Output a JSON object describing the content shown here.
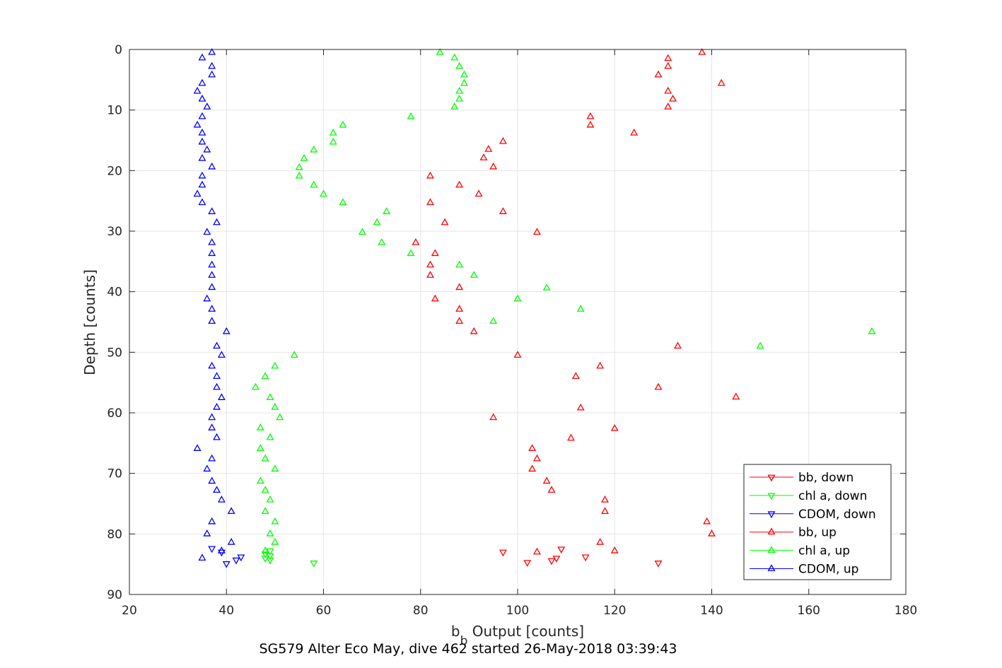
{
  "chart_data": {
    "type": "scatter",
    "xlabel_main": "b",
    "xlabel_sub": "b",
    "xlabel_rest": " Output [counts]",
    "ylabel": "Depth [counts]",
    "caption": "SG579 Alter Eco May, dive 462 started 26-May-2018 03:39:43",
    "xlim": [
      20,
      180
    ],
    "ylim": [
      0,
      90
    ],
    "y_reversed": true,
    "grid": true,
    "legend_position": "bottom-right",
    "x_ticks": [
      "20",
      "40",
      "60",
      "80",
      "100",
      "120",
      "140",
      "160",
      "180"
    ],
    "y_ticks": [
      "0",
      "10",
      "20",
      "30",
      "40",
      "50",
      "60",
      "70",
      "80",
      "90"
    ],
    "series": [
      {
        "name": "bb, down",
        "color": "#ff0000",
        "marker": "triangle-down",
        "points": [
          [
            97,
            83.0
          ],
          [
            109,
            82.5
          ],
          [
            114,
            83.8
          ],
          [
            108,
            84.0
          ],
          [
            107,
            84.4
          ],
          [
            102,
            84.7
          ],
          [
            129,
            84.8
          ]
        ]
      },
      {
        "name": "chl a, down",
        "color": "#00ff00",
        "marker": "triangle-down",
        "points": [
          [
            49,
            82.8
          ],
          [
            48,
            83.3
          ],
          [
            49,
            83.6
          ],
          [
            48,
            84.0
          ],
          [
            49,
            84.3
          ],
          [
            58,
            84.8
          ]
        ]
      },
      {
        "name": "CDOM, down",
        "color": "#0000ff",
        "marker": "triangle-down",
        "points": [
          [
            37,
            82.4
          ],
          [
            39,
            83.0
          ],
          [
            43,
            83.8
          ],
          [
            42,
            84.3
          ],
          [
            40,
            84.9
          ]
        ]
      },
      {
        "name": "bb, up",
        "color": "#ff0000",
        "marker": "triangle-up",
        "points": [
          [
            138,
            0.5
          ],
          [
            131,
            1.5
          ],
          [
            131,
            2.8
          ],
          [
            129,
            4.2
          ],
          [
            142,
            5.6
          ],
          [
            131,
            6.9
          ],
          [
            132,
            8.2
          ],
          [
            131,
            9.5
          ],
          [
            115,
            11.1
          ],
          [
            115,
            12.5
          ],
          [
            124,
            13.8
          ],
          [
            97,
            15.2
          ],
          [
            94,
            16.5
          ],
          [
            93,
            17.9
          ],
          [
            95,
            19.4
          ],
          [
            82,
            20.9
          ],
          [
            88,
            22.4
          ],
          [
            92,
            23.9
          ],
          [
            82,
            25.3
          ],
          [
            97,
            26.8
          ],
          [
            85,
            28.6
          ],
          [
            104,
            30.2
          ],
          [
            79,
            31.9
          ],
          [
            83,
            33.7
          ],
          [
            82,
            35.6
          ],
          [
            82,
            37.3
          ],
          [
            88,
            39.3
          ],
          [
            83,
            41.2
          ],
          [
            88,
            42.9
          ],
          [
            88,
            44.9
          ],
          [
            91,
            46.6
          ],
          [
            133,
            49.0
          ],
          [
            100,
            50.5
          ],
          [
            117,
            52.3
          ],
          [
            112,
            54.0
          ],
          [
            129,
            55.8
          ],
          [
            145,
            57.4
          ],
          [
            113,
            59.2
          ],
          [
            95,
            60.8
          ],
          [
            120,
            62.6
          ],
          [
            111,
            64.2
          ],
          [
            103,
            65.9
          ],
          [
            104,
            67.6
          ],
          [
            103,
            69.3
          ],
          [
            106,
            71.3
          ],
          [
            107,
            72.8
          ],
          [
            118,
            74.4
          ],
          [
            118,
            76.3
          ],
          [
            139,
            78.0
          ],
          [
            140,
            80.0
          ],
          [
            117,
            81.4
          ],
          [
            120,
            82.8
          ],
          [
            104,
            83.0
          ]
        ]
      },
      {
        "name": "chl a, up",
        "color": "#00ff00",
        "marker": "triangle-up",
        "points": [
          [
            84,
            0.5
          ],
          [
            87,
            1.4
          ],
          [
            88,
            2.8
          ],
          [
            89,
            4.2
          ],
          [
            89,
            5.6
          ],
          [
            88,
            6.9
          ],
          [
            88,
            8.2
          ],
          [
            87,
            9.5
          ],
          [
            78,
            11.1
          ],
          [
            64,
            12.5
          ],
          [
            62,
            13.8
          ],
          [
            62,
            15.3
          ],
          [
            58,
            16.6
          ],
          [
            56,
            18.0
          ],
          [
            55,
            19.5
          ],
          [
            55,
            20.9
          ],
          [
            58,
            22.4
          ],
          [
            60,
            23.9
          ],
          [
            64,
            25.3
          ],
          [
            73,
            26.8
          ],
          [
            71,
            28.6
          ],
          [
            68,
            30.2
          ],
          [
            72,
            31.9
          ],
          [
            78,
            33.7
          ],
          [
            88,
            35.6
          ],
          [
            91,
            37.3
          ],
          [
            106,
            39.4
          ],
          [
            100,
            41.2
          ],
          [
            113,
            42.9
          ],
          [
            95,
            44.9
          ],
          [
            173,
            46.6
          ],
          [
            150,
            49.0
          ],
          [
            54,
            50.5
          ],
          [
            50,
            52.3
          ],
          [
            48,
            54.0
          ],
          [
            46,
            55.8
          ],
          [
            49,
            57.5
          ],
          [
            50,
            59.1
          ],
          [
            51,
            60.8
          ],
          [
            47,
            62.5
          ],
          [
            49,
            64.1
          ],
          [
            47,
            65.9
          ],
          [
            48,
            67.6
          ],
          [
            50,
            69.3
          ],
          [
            47,
            71.3
          ],
          [
            48,
            72.8
          ],
          [
            49,
            74.4
          ],
          [
            48,
            76.3
          ],
          [
            50,
            78.0
          ],
          [
            49,
            80.0
          ],
          [
            50,
            81.4
          ],
          [
            48,
            82.8
          ]
        ]
      },
      {
        "name": "CDOM, up",
        "color": "#0000ff",
        "marker": "triangle-up",
        "points": [
          [
            37,
            0.5
          ],
          [
            35,
            1.4
          ],
          [
            37,
            2.8
          ],
          [
            37,
            4.2
          ],
          [
            35,
            5.6
          ],
          [
            34,
            6.9
          ],
          [
            35,
            8.2
          ],
          [
            36,
            9.5
          ],
          [
            35,
            11.1
          ],
          [
            34,
            12.5
          ],
          [
            35,
            13.8
          ],
          [
            35,
            15.3
          ],
          [
            36,
            16.6
          ],
          [
            35,
            18.0
          ],
          [
            37,
            19.4
          ],
          [
            35,
            20.9
          ],
          [
            35,
            22.4
          ],
          [
            34,
            23.9
          ],
          [
            35,
            25.3
          ],
          [
            37,
            26.8
          ],
          [
            38,
            28.6
          ],
          [
            36,
            30.2
          ],
          [
            37,
            31.9
          ],
          [
            37,
            33.7
          ],
          [
            37,
            35.6
          ],
          [
            37,
            37.3
          ],
          [
            37,
            39.3
          ],
          [
            36,
            41.2
          ],
          [
            37,
            42.9
          ],
          [
            37,
            44.9
          ],
          [
            40,
            46.6
          ],
          [
            38,
            49.0
          ],
          [
            39,
            50.5
          ],
          [
            37,
            52.3
          ],
          [
            38,
            54.0
          ],
          [
            38,
            55.8
          ],
          [
            39,
            57.5
          ],
          [
            38,
            59.1
          ],
          [
            37,
            60.8
          ],
          [
            37,
            62.5
          ],
          [
            38,
            64.1
          ],
          [
            34,
            65.9
          ],
          [
            37,
            67.6
          ],
          [
            36,
            69.3
          ],
          [
            37,
            71.3
          ],
          [
            38,
            72.8
          ],
          [
            39,
            74.4
          ],
          [
            41,
            76.3
          ],
          [
            37,
            78.0
          ],
          [
            36,
            80.0
          ],
          [
            41,
            81.4
          ],
          [
            39,
            82.8
          ],
          [
            35,
            84.0
          ]
        ]
      }
    ]
  }
}
